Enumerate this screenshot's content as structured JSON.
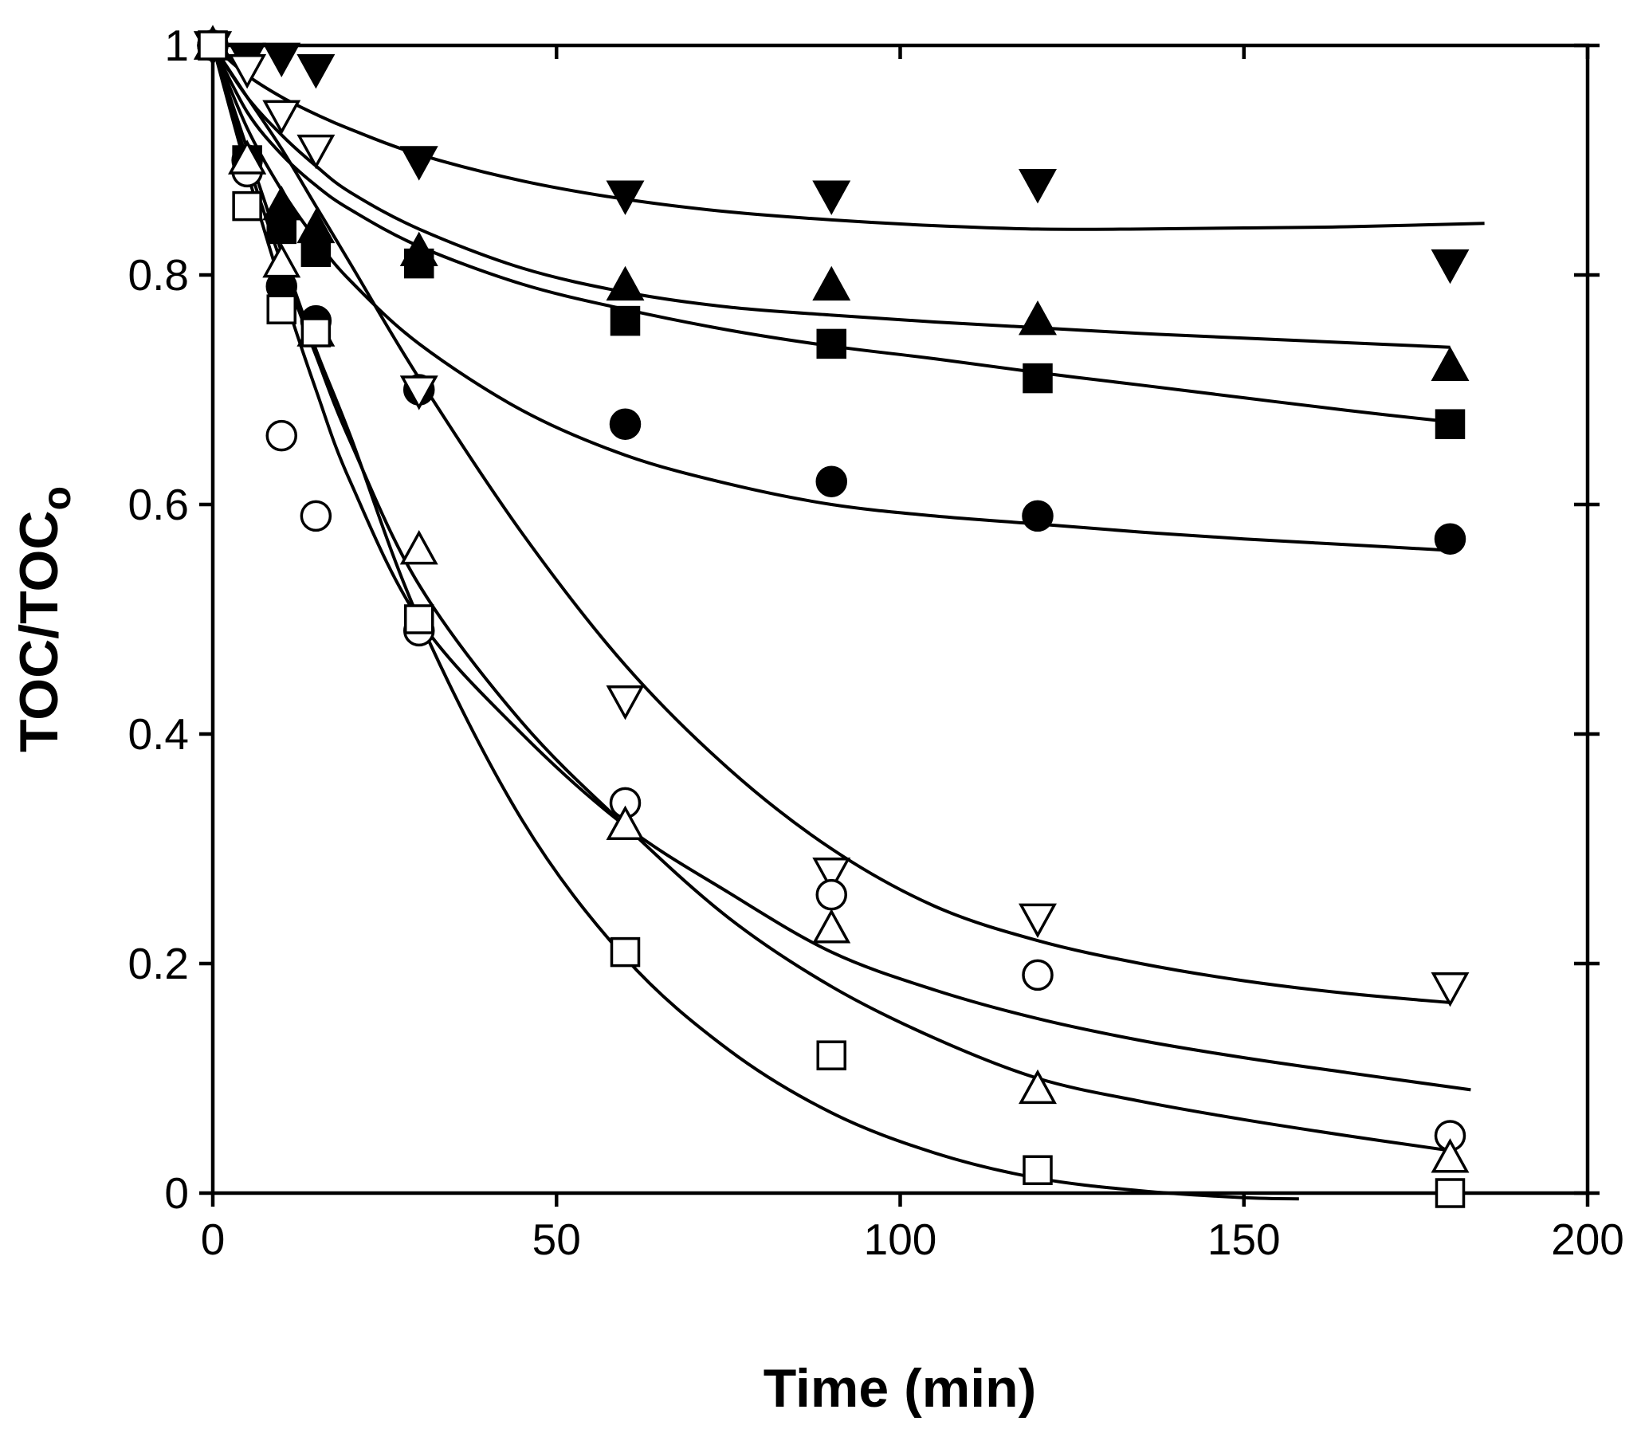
{
  "chart_data": {
    "type": "scatter",
    "title": "",
    "xlabel": "Time (min)",
    "ylabel_main": "TOC/TOC",
    "ylabel_sub": "o",
    "xlim": [
      0,
      200
    ],
    "ylim": [
      0,
      1
    ],
    "x_ticks": [
      0,
      50,
      100,
      150,
      200
    ],
    "x_tick_labels": [
      "0",
      "50",
      "100",
      "150",
      "200"
    ],
    "y_ticks": [
      0,
      0.2,
      0.4,
      0.6,
      0.8,
      1
    ],
    "y_tick_labels": [
      "0",
      "0.2",
      "0.4",
      "0.6",
      "0.8",
      "1"
    ],
    "grid": false,
    "legend": "none",
    "series": [
      {
        "name": "filled-down-triangle",
        "marker": "triangle-down",
        "filled": true,
        "x": [
          0,
          5,
          10,
          15,
          30,
          60,
          90,
          120,
          180
        ],
        "y": [
          1.0,
          0.99,
          0.99,
          0.98,
          0.9,
          0.87,
          0.87,
          0.88,
          0.81
        ],
        "fit": {
          "x": [
            0,
            5,
            10,
            15,
            20,
            30,
            45,
            60,
            75,
            90,
            105,
            120,
            135,
            150,
            165,
            185
          ],
          "y": [
            1.0,
            0.974,
            0.955,
            0.94,
            0.927,
            0.905,
            0.882,
            0.866,
            0.855,
            0.848,
            0.843,
            0.84,
            0.84,
            0.841,
            0.842,
            0.845
          ]
        }
      },
      {
        "name": "filled-up-triangle",
        "marker": "triangle-up",
        "filled": true,
        "x": [
          0,
          5,
          10,
          15,
          30,
          60,
          90,
          120,
          180
        ],
        "y": [
          1.0,
          0.9,
          0.86,
          0.84,
          0.82,
          0.79,
          0.79,
          0.76,
          0.72
        ],
        "fit": {
          "x": [
            0,
            5,
            10,
            15,
            20,
            30,
            45,
            60,
            75,
            90,
            105,
            120,
            135,
            150,
            165,
            180
          ],
          "y": [
            1.0,
            0.955,
            0.922,
            0.895,
            0.872,
            0.84,
            0.806,
            0.785,
            0.772,
            0.765,
            0.759,
            0.754,
            0.749,
            0.745,
            0.741,
            0.737
          ]
        }
      },
      {
        "name": "filled-square",
        "marker": "square",
        "filled": true,
        "x": [
          0,
          5,
          10,
          15,
          30,
          60,
          90,
          120,
          180
        ],
        "y": [
          1.0,
          0.9,
          0.84,
          0.82,
          0.81,
          0.76,
          0.74,
          0.71,
          0.67
        ],
        "fit": {
          "x": [
            0,
            5,
            10,
            15,
            20,
            30,
            45,
            60,
            75,
            90,
            105,
            120,
            135,
            150,
            165,
            180
          ],
          "y": [
            1.0,
            0.942,
            0.905,
            0.878,
            0.857,
            0.825,
            0.792,
            0.77,
            0.752,
            0.738,
            0.727,
            0.715,
            0.704,
            0.693,
            0.682,
            0.672
          ]
        }
      },
      {
        "name": "filled-circle",
        "marker": "circle",
        "filled": true,
        "x": [
          0,
          5,
          10,
          15,
          30,
          60,
          90,
          120,
          180
        ],
        "y": [
          1.0,
          0.9,
          0.79,
          0.76,
          0.7,
          0.67,
          0.62,
          0.59,
          0.57
        ],
        "fit": {
          "x": [
            0,
            5,
            10,
            15,
            20,
            30,
            45,
            60,
            75,
            90,
            105,
            120,
            135,
            150,
            165,
            180
          ],
          "y": [
            1.0,
            0.928,
            0.874,
            0.831,
            0.795,
            0.74,
            0.682,
            0.643,
            0.618,
            0.6,
            0.59,
            0.583,
            0.576,
            0.57,
            0.565,
            0.56
          ]
        }
      },
      {
        "name": "open-down-triangle",
        "marker": "triangle-down",
        "filled": false,
        "x": [
          0,
          5,
          10,
          15,
          30,
          60,
          90,
          120,
          180
        ],
        "y": [
          1.0,
          0.98,
          0.94,
          0.91,
          0.7,
          0.43,
          0.28,
          0.24,
          0.18
        ],
        "fit": {
          "x": [
            0,
            5,
            10,
            15,
            20,
            30,
            45,
            60,
            75,
            90,
            105,
            120,
            135,
            150,
            165,
            180
          ],
          "y": [
            1.0,
            0.955,
            0.91,
            0.86,
            0.81,
            0.71,
            0.575,
            0.46,
            0.37,
            0.3,
            0.25,
            0.22,
            0.2,
            0.185,
            0.174,
            0.166
          ]
        }
      },
      {
        "name": "open-circle",
        "marker": "circle",
        "filled": false,
        "x": [
          0,
          5,
          10,
          15,
          30,
          60,
          90,
          120,
          180
        ],
        "y": [
          1.0,
          0.89,
          0.66,
          0.59,
          0.49,
          0.34,
          0.26,
          0.19,
          0.05
        ],
        "fit": {
          "x": [
            0,
            5,
            10,
            15,
            20,
            30,
            45,
            60,
            75,
            90,
            105,
            120,
            135,
            150,
            165,
            183
          ],
          "y": [
            1.0,
            0.89,
            0.79,
            0.7,
            0.62,
            0.5,
            0.4,
            0.32,
            0.262,
            0.21,
            0.177,
            0.152,
            0.133,
            0.118,
            0.105,
            0.09
          ]
        }
      },
      {
        "name": "open-up-triangle",
        "marker": "triangle-up",
        "filled": false,
        "x": [
          0,
          5,
          10,
          15,
          30,
          60,
          90,
          120,
          180
        ],
        "y": [
          1.0,
          0.9,
          0.81,
          0.75,
          0.56,
          0.32,
          0.23,
          0.09,
          0.03
        ],
        "fit": {
          "x": [
            0,
            5,
            10,
            15,
            20,
            30,
            45,
            60,
            75,
            90,
            105,
            120,
            135,
            150,
            165,
            180
          ],
          "y": [
            1.0,
            0.9,
            0.81,
            0.73,
            0.655,
            0.53,
            0.41,
            0.32,
            0.24,
            0.18,
            0.135,
            0.1,
            0.08,
            0.064,
            0.05,
            0.037
          ]
        }
      },
      {
        "name": "open-square",
        "marker": "square",
        "filled": false,
        "x": [
          0,
          5,
          10,
          15,
          30,
          60,
          90,
          120,
          180
        ],
        "y": [
          1.0,
          0.86,
          0.77,
          0.75,
          0.5,
          0.21,
          0.12,
          0.02,
          0.0
        ],
        "fit": {
          "x": [
            0,
            5,
            10,
            15,
            20,
            30,
            45,
            60,
            75,
            90,
            105,
            120,
            135,
            150,
            158
          ],
          "y": [
            1.0,
            0.91,
            0.82,
            0.735,
            0.66,
            0.5,
            0.325,
            0.205,
            0.125,
            0.07,
            0.035,
            0.013,
            0.002,
            -0.004,
            -0.005
          ]
        }
      }
    ]
  }
}
